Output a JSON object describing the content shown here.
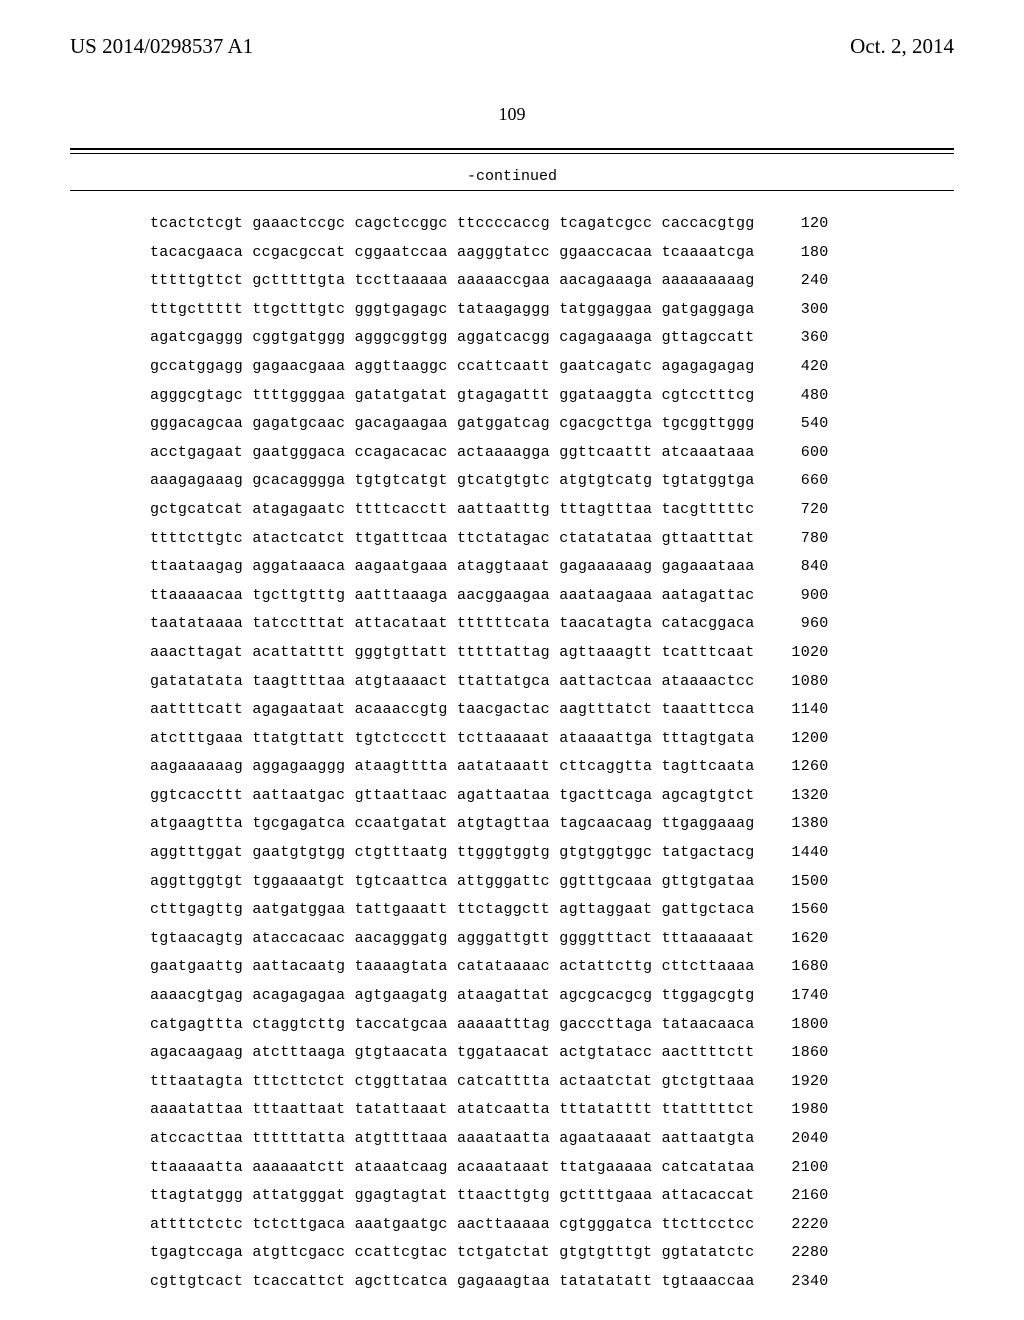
{
  "header": {
    "left": "US 2014/0298537 A1",
    "right": "Oct. 2, 2014"
  },
  "page_number": "109",
  "continued_label": "-continued",
  "sequence": {
    "start": 120,
    "step": 60,
    "lines": [
      "tcactctcgt gaaactccgc cagctccggc ttccccaccg tcagatcgcc caccacgtgg",
      "tacacgaaca ccgacgccat cggaatccaa aagggtatcc ggaaccacaa tcaaaatcga",
      "tttttgttct gctttttgta tccttaaaaa aaaaaccgaa aacagaaaga aaaaaaaaag",
      "tttgcttttt ttgctttgtc gggtgagagc tataagaggg tatggaggaa gatgaggaga",
      "agatcgaggg cggtgatggg agggcggtgg aggatcacgg cagagaaaga gttagccatt",
      "gccatggagg gagaacgaaa aggttaaggc ccattcaatt gaatcagatc agagagagag",
      "agggcgtagc ttttggggaa gatatgatat gtagagattt ggataaggta cgtcctttcg",
      "gggacagcaa gagatgcaac gacagaagaa gatggatcag cgacgcttga tgcggttggg",
      "acctgagaat gaatgggaca ccagacacac actaaaagga ggttcaattt atcaaataaa",
      "aaagagaaag gcacagggga tgtgtcatgt gtcatgtgtc atgtgtcatg tgtatggtga",
      "gctgcatcat atagagaatc ttttcacctt aattaatttg tttagtttaa tacgtttttc",
      "ttttcttgtc atactcatct ttgatttcaa ttctatagac ctatatataa gttaatttat",
      "ttaataagag aggataaaca aagaatgaaa ataggtaaat gagaaaaaag gagaaataaa",
      "ttaaaaacaa tgcttgtttg aatttaaaga aacggaagaa aaataagaaa aatagattac",
      "taatataaaa tatcctttat attacataat ttttttcata taacatagta catacggaca",
      "aaacttagat acattatttt gggtgttatt tttttattag agttaaagtt tcatttcaat",
      "gatatatata taagttttaa atgtaaaact ttattatgca aattactcaa ataaaactcc",
      "aattttcatt agagaataat acaaaccgtg taacgactac aagtttatct taaatttcca",
      "atctttgaaa ttatgttatt tgtctccctt tcttaaaaat ataaaattga tttagtgata",
      "aagaaaaaag aggagaaggg ataagtttta aatataaatt cttcaggtta tagttcaata",
      "ggtcaccttt aattaatgac gttaattaac agattaataa tgacttcaga agcagtgtct",
      "atgaagttta tgcgagatca ccaatgatat atgtagttaa tagcaacaag ttgaggaaag",
      "aggtttggat gaatgtgtgg ctgtttaatg ttgggtggtg gtgtggtggc tatgactacg",
      "aggttggtgt tggaaaatgt tgtcaattca attgggattc ggtttgcaaa gttgtgataa",
      "ctttgagttg aatgatggaa tattgaaatt ttctaggctt agttaggaat gattgctaca",
      "tgtaacagtg ataccacaac aacagggatg agggattgtt ggggtttact tttaaaaaat",
      "gaatgaattg aattacaatg taaaagtata catataaaac actattcttg cttcttaaaa",
      "aaaacgtgag acagagagaa agtgaagatg ataagattat agcgcacgcg ttggagcgtg",
      "catgagttta ctaggtcttg taccatgcaa aaaaatttag gacccttaga tataacaaca",
      "agacaagaag atctttaaga gtgtaacata tggataacat actgtatacc aacttttctt",
      "tttaatagta tttcttctct ctggttataa catcatttta actaatctat gtctgttaaa",
      "aaaatattaa tttaattaat tatattaaat atatcaatta tttatatttt ttatttttct",
      "atccacttaa ttttttatta atgttttaaa aaaataatta agaataaaat aattaatgta",
      "ttaaaaatta aaaaaatctt ataaatcaag acaaataaat ttatgaaaaa catcatataa",
      "ttagtatggg attatgggat ggagtagtat ttaacttgtg gcttttgaaa attacaccat",
      "attttctctc tctcttgaca aaatgaatgc aacttaaaaa cgtgggatca ttcttcctcc",
      "tgagtccaga atgttcgacc ccattcgtac tctgatctat gtgtgtttgt ggtatatctc",
      "cgttgtcact tcaccattct agcttcatca gagaaagtaa tatatatatt tgtaaaccaa"
    ]
  }
}
